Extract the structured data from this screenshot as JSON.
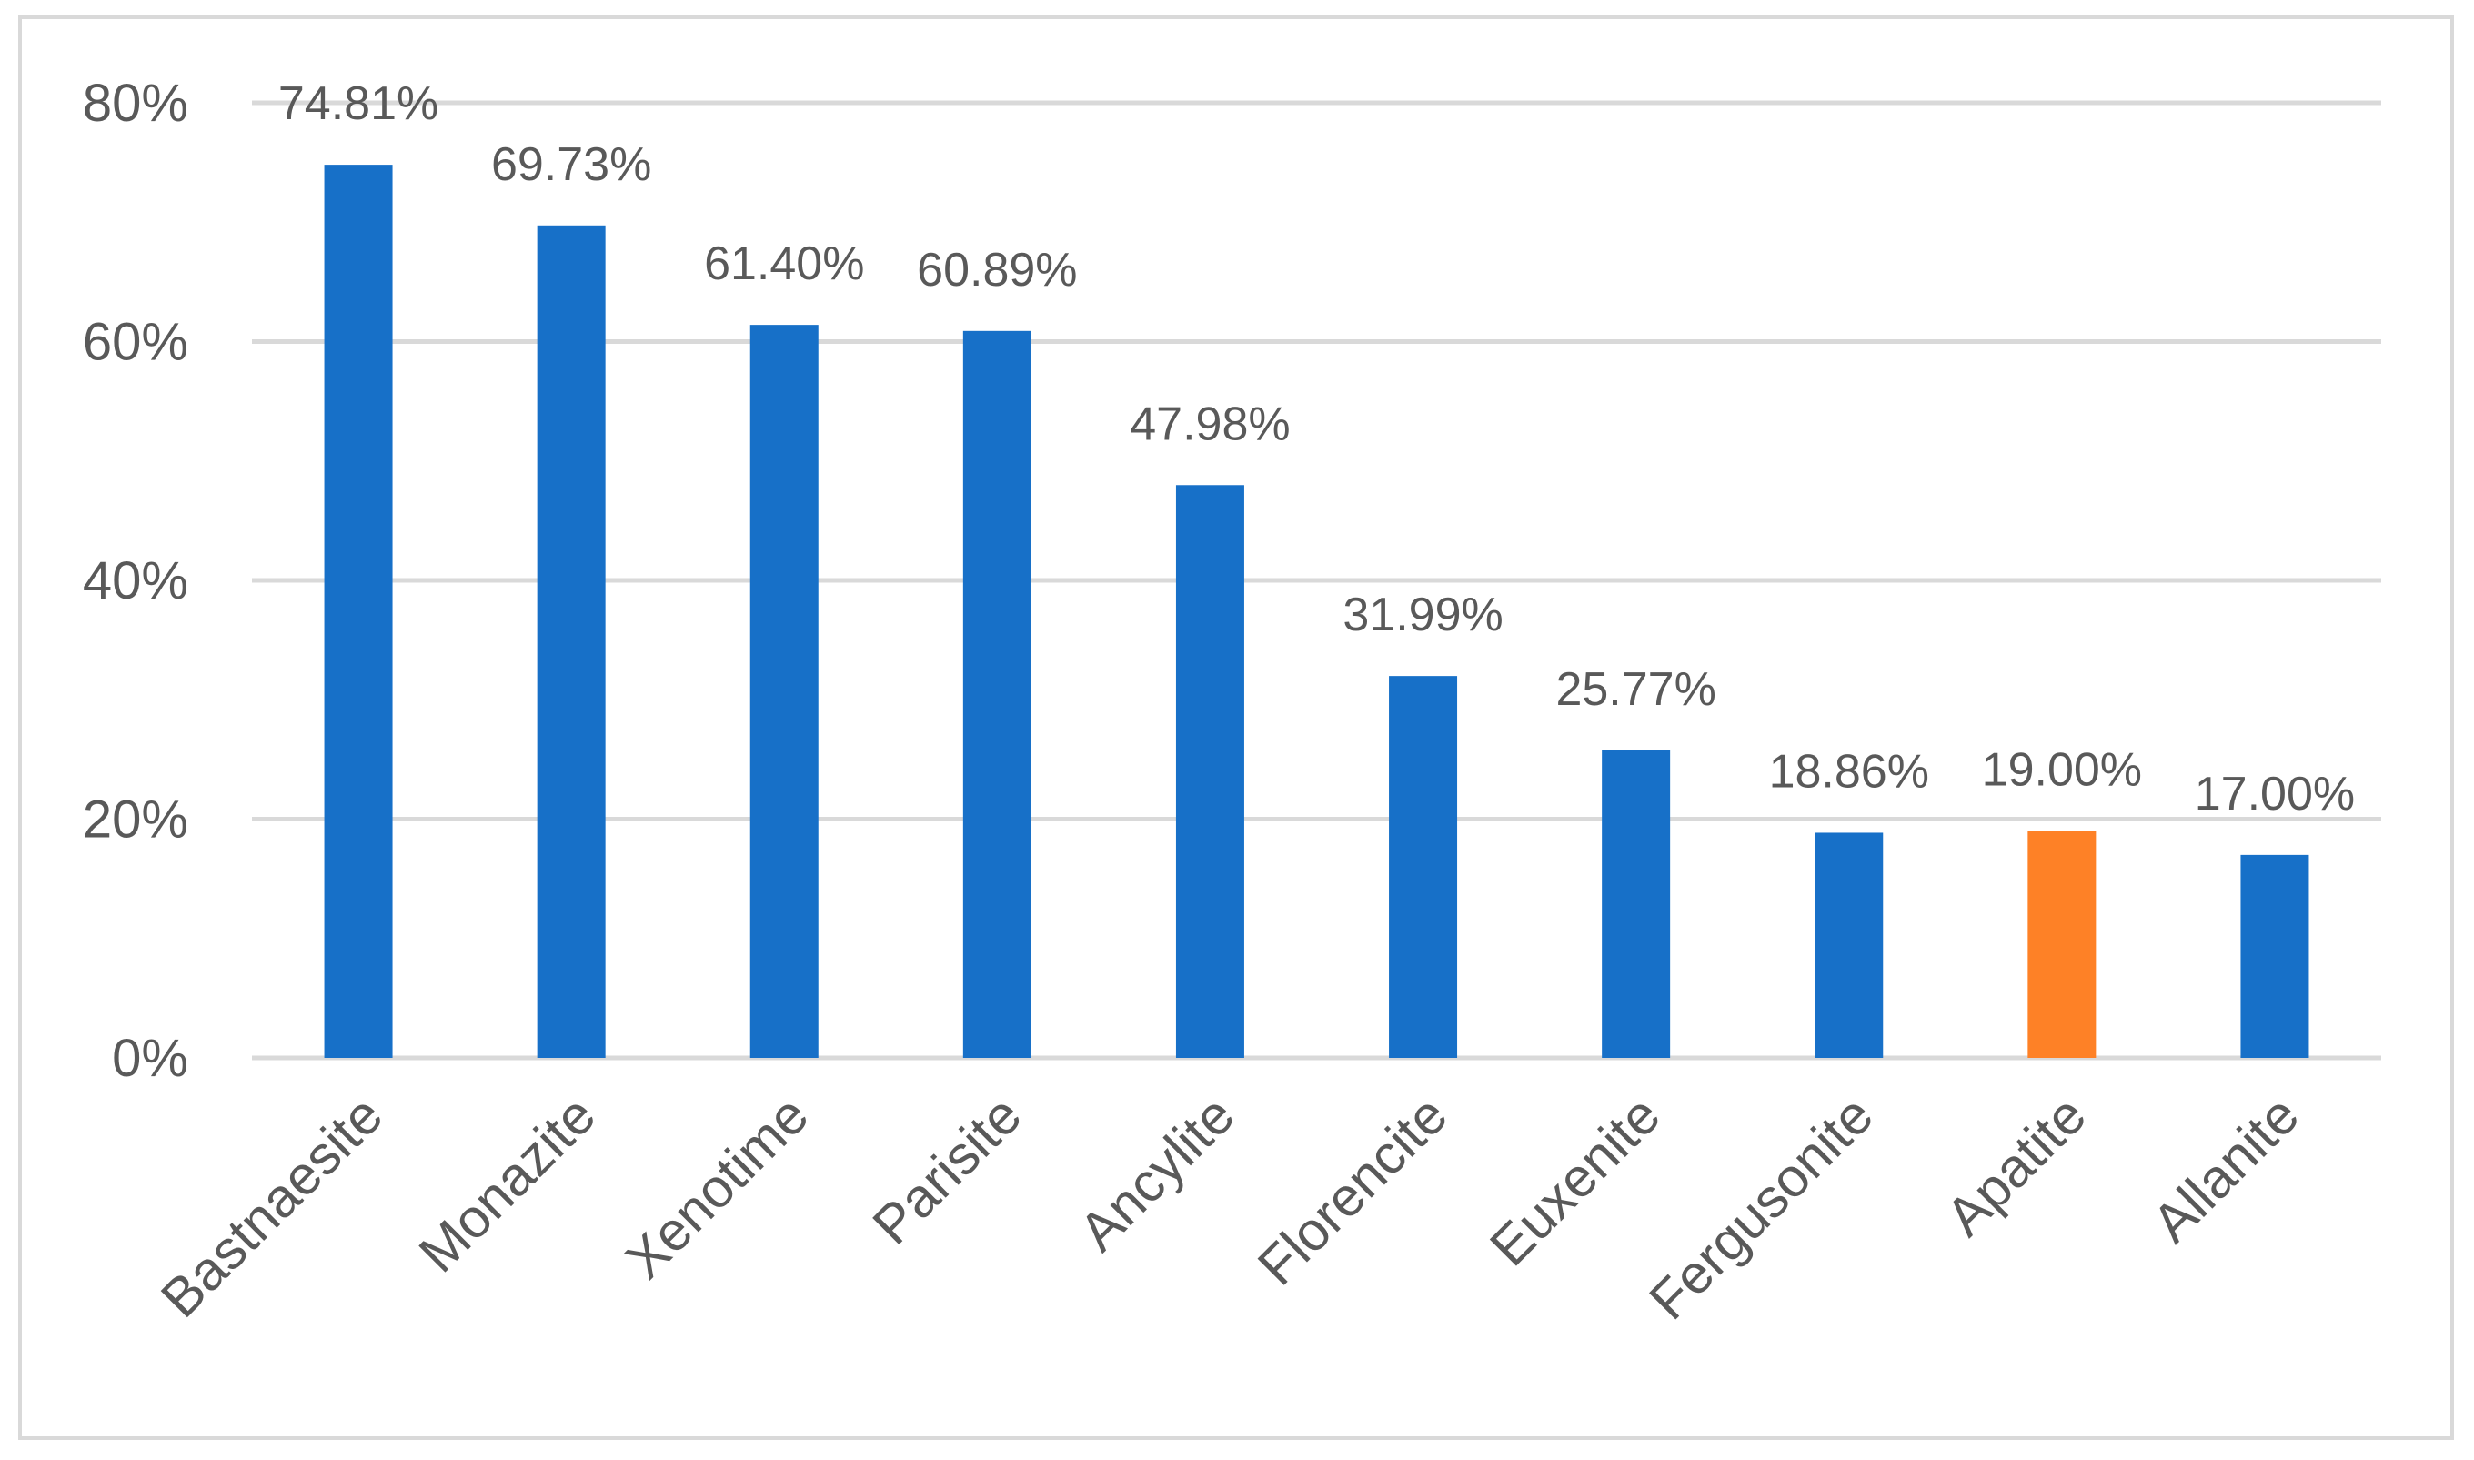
{
  "chart_data": {
    "type": "bar",
    "categories": [
      "Bastnaesite",
      "Monazite",
      "Xenotime",
      "Parisite",
      "Ancylite",
      "Florencite",
      "Euxenite",
      "Fergusonite",
      "Apatite",
      "Allanite"
    ],
    "values": [
      74.81,
      69.73,
      61.4,
      60.89,
      47.98,
      31.99,
      25.77,
      18.86,
      19.0,
      17.0
    ],
    "data_labels": [
      "74.81%",
      "69.73%",
      "61.40%",
      "60.89%",
      "47.98%",
      "31.99%",
      "25.77%",
      "18.86%",
      "19.00%",
      "17.00%"
    ],
    "bar_colors": [
      "#1770c8",
      "#1770c8",
      "#1770c8",
      "#1770c8",
      "#1770c8",
      "#1770c8",
      "#1770c8",
      "#1770c8",
      "#fe8126",
      "#1770c8"
    ],
    "ylim": [
      0,
      80
    ],
    "yticks": [
      0,
      20,
      40,
      60,
      80
    ],
    "ytick_labels": [
      "0%",
      "20%",
      "40%",
      "60%",
      "80%"
    ],
    "grid": true,
    "gridline_color": "#d9d9d9",
    "title": "",
    "xlabel": "",
    "ylabel": ""
  }
}
